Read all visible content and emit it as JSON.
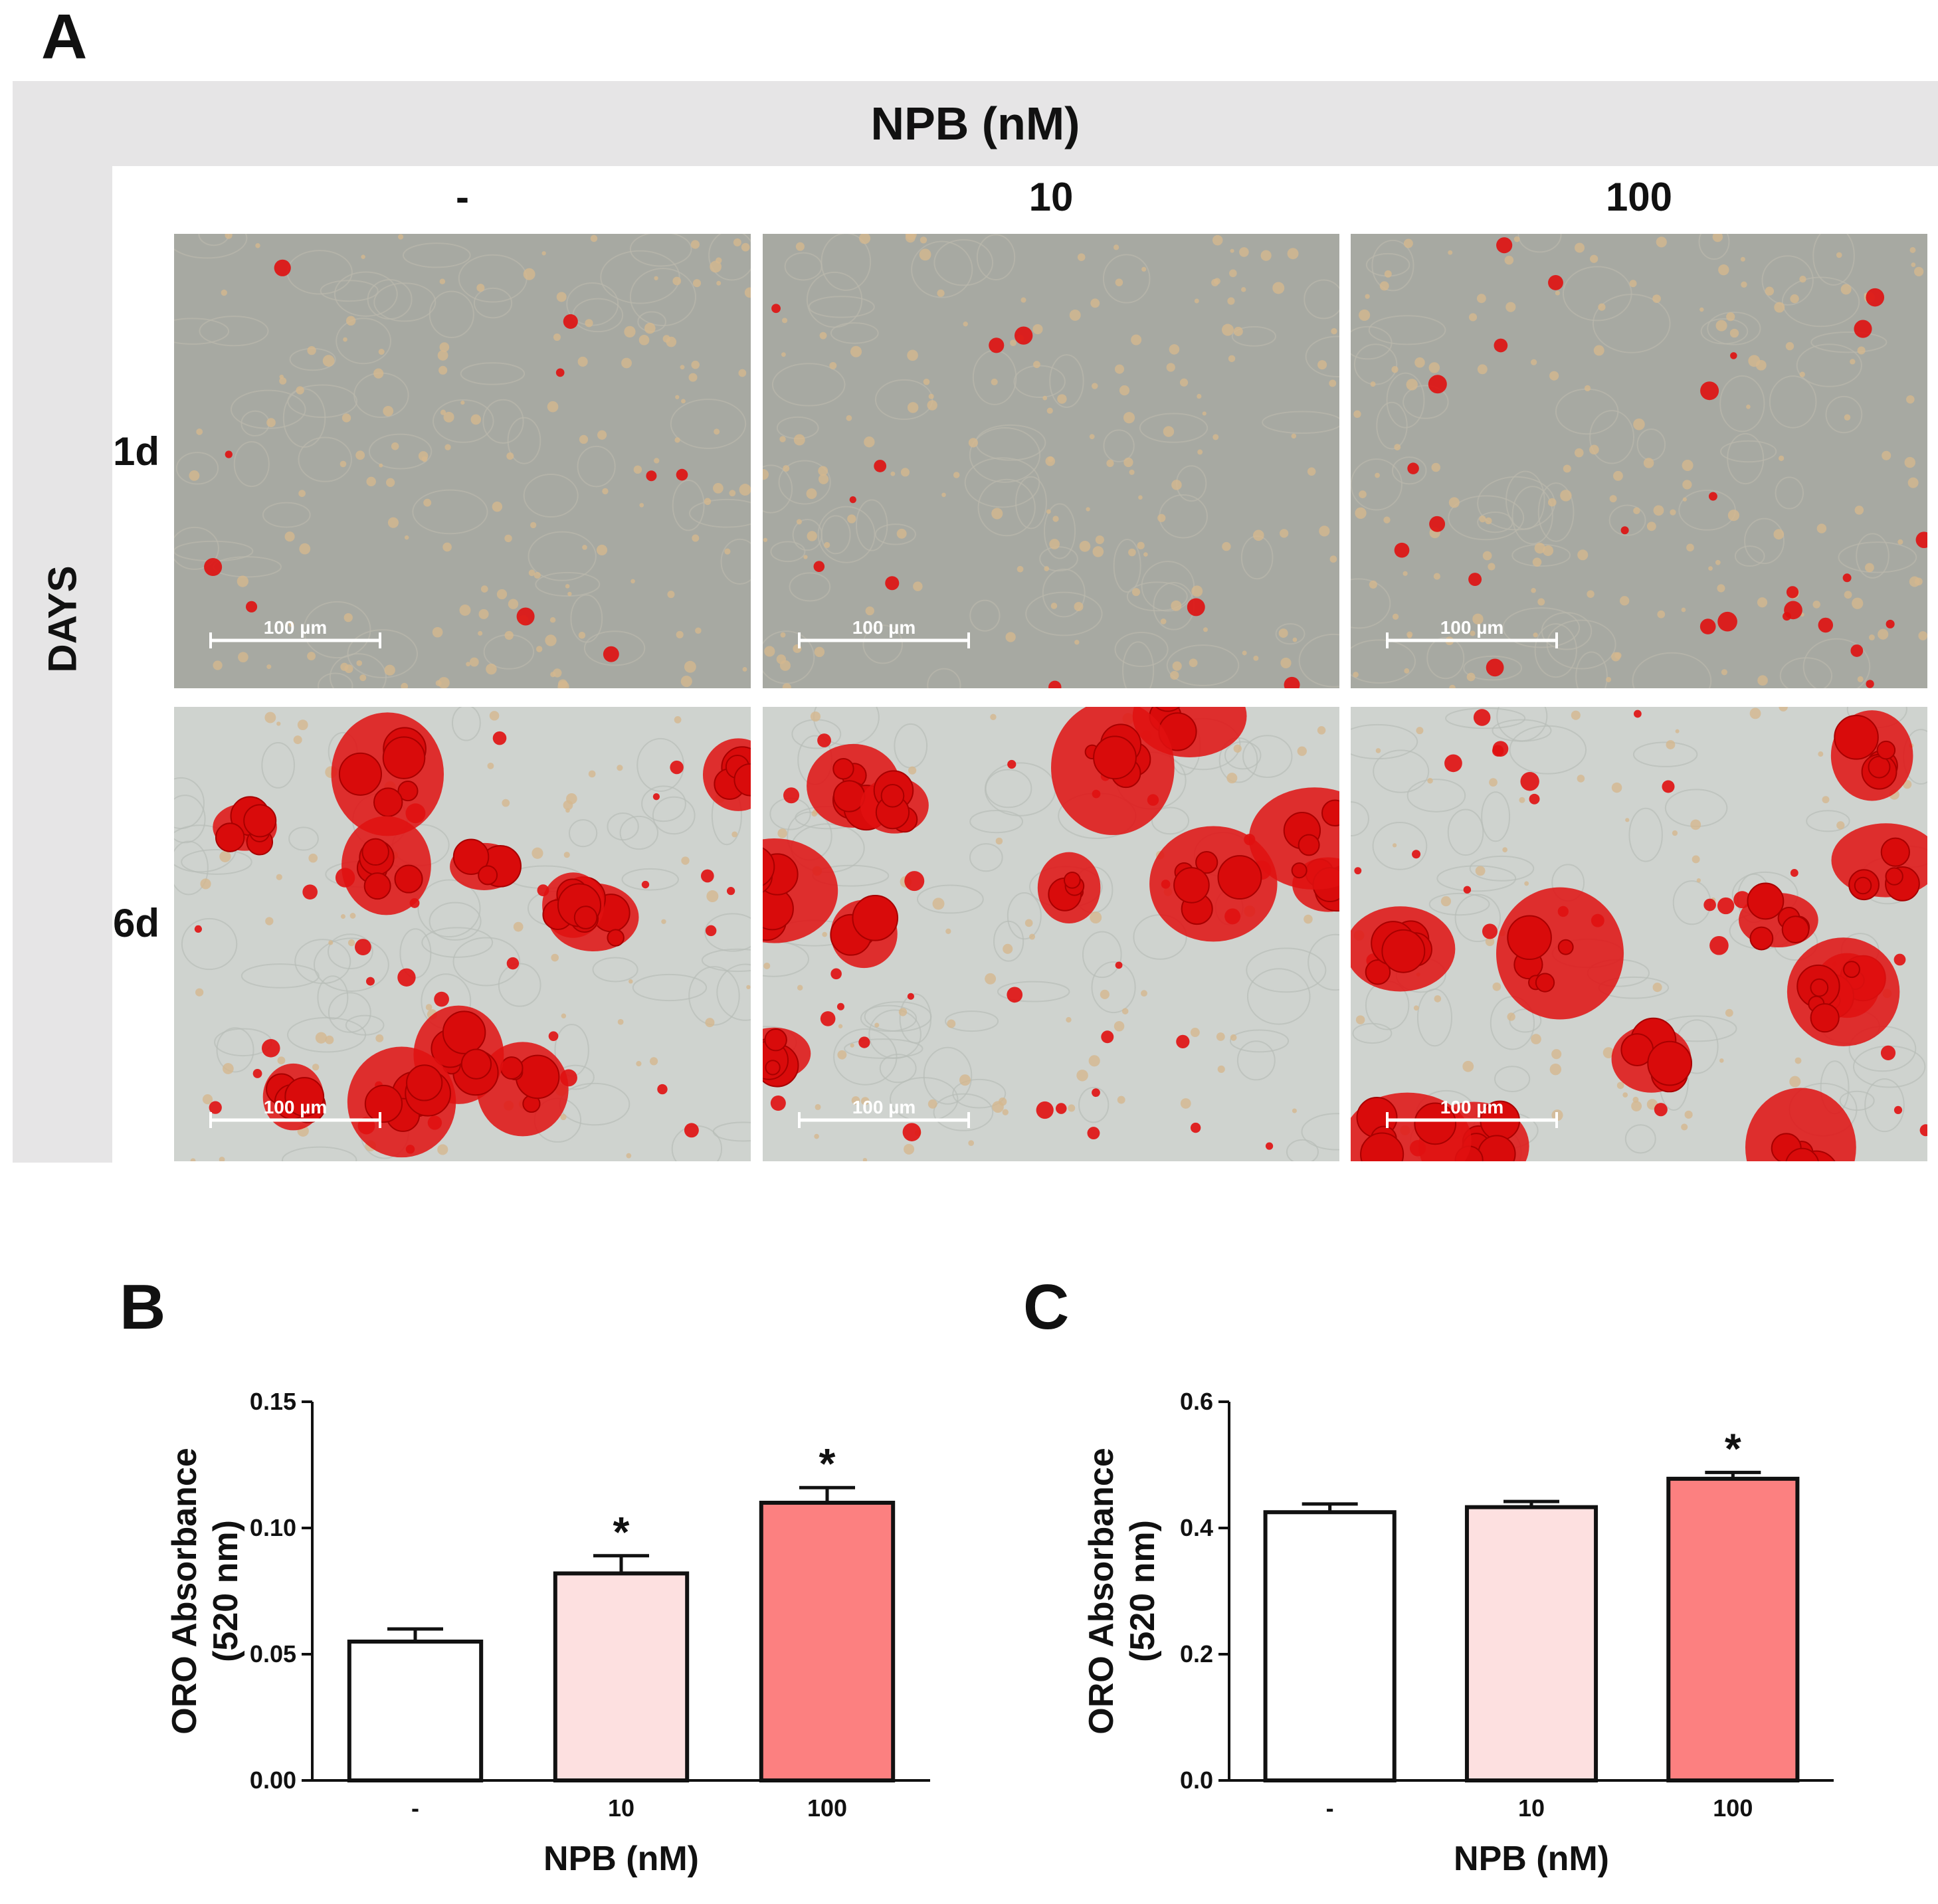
{
  "panel_labels": {
    "a": "A",
    "b": "B",
    "c": "C"
  },
  "panel_a": {
    "header": "NPB (nM)",
    "columns": [
      "-",
      "10",
      "100"
    ],
    "side_label": "DAYS",
    "rows": [
      "1d",
      "6d"
    ],
    "scale_bar": "100 µm",
    "colors": {
      "background_1d": "#a7a9a2",
      "background_6d": "#cfd3cf",
      "stain": "#e01010",
      "frame": "#e6e5e6"
    }
  },
  "chart_data": [
    {
      "type": "bar",
      "categories": [
        "-",
        "10",
        "100"
      ],
      "values": [
        0.055,
        0.082,
        0.11
      ],
      "errors": [
        0.005,
        0.007,
        0.006
      ],
      "significance": [
        "",
        "*",
        "*"
      ],
      "colors": [
        "#ffffff",
        "#fde0e0",
        "#fc8080"
      ],
      "xlabel": "NPB (nM)",
      "ylabel": [
        "ORO Absorbance",
        "(520 nm)"
      ],
      "ylim": [
        0,
        0.15
      ],
      "yticks": [
        "0.00",
        "0.05",
        "0.10",
        "0.15"
      ]
    },
    {
      "type": "bar",
      "categories": [
        "-",
        "10",
        "100"
      ],
      "values": [
        0.425,
        0.433,
        0.478
      ],
      "errors": [
        0.013,
        0.009,
        0.01
      ],
      "significance": [
        "",
        "",
        "*"
      ],
      "colors": [
        "#ffffff",
        "#fde0e0",
        "#fc8080"
      ],
      "xlabel": "NPB (nM)",
      "ylabel": [
        "ORO Absorbance",
        "(520 nm)"
      ],
      "ylim": [
        0,
        0.6
      ],
      "yticks": [
        "0.0",
        "0.2",
        "0.4",
        "0.6"
      ]
    }
  ]
}
